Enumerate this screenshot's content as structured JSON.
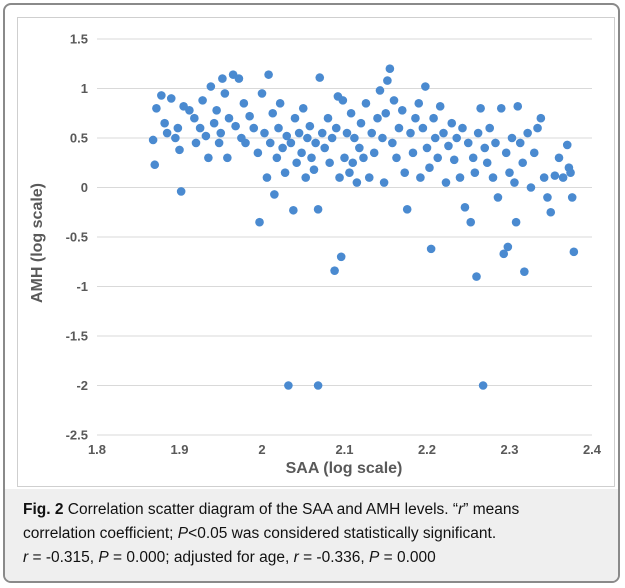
{
  "chart_data": {
    "type": "scatter",
    "xlabel": "SAA (log scale)",
    "ylabel": "AMH (log scale)",
    "xlim": [
      1.8,
      2.4
    ],
    "ylim": [
      -2.5,
      1.5
    ],
    "xticks": [
      "1.8",
      "1.9",
      "2",
      "2.1",
      "2.2",
      "2.3",
      "2.4"
    ],
    "yticks": [
      "1.5",
      "1",
      "0.5",
      "0",
      "-0.5",
      "-1",
      "-1.5",
      "-2",
      "-2.5"
    ],
    "grid": "horizontal",
    "legend": "none",
    "marker_color": "#4a8ad0",
    "points": [
      [
        1.868,
        0.48
      ],
      [
        1.87,
        0.23
      ],
      [
        1.872,
        0.8
      ],
      [
        1.878,
        0.93
      ],
      [
        1.882,
        0.65
      ],
      [
        1.885,
        0.55
      ],
      [
        1.89,
        0.9
      ],
      [
        1.895,
        0.5
      ],
      [
        1.898,
        0.6
      ],
      [
        1.9,
        0.38
      ],
      [
        1.902,
        -0.04
      ],
      [
        1.905,
        0.82
      ],
      [
        1.912,
        0.78
      ],
      [
        1.918,
        0.7
      ],
      [
        1.92,
        0.45
      ],
      [
        1.925,
        0.6
      ],
      [
        1.928,
        0.88
      ],
      [
        1.932,
        0.52
      ],
      [
        1.935,
        0.3
      ],
      [
        1.938,
        1.02
      ],
      [
        1.942,
        0.65
      ],
      [
        1.945,
        0.78
      ],
      [
        1.948,
        0.45
      ],
      [
        1.95,
        0.55
      ],
      [
        1.952,
        1.1
      ],
      [
        1.955,
        0.95
      ],
      [
        1.958,
        0.3
      ],
      [
        1.96,
        0.7
      ],
      [
        1.965,
        1.14
      ],
      [
        1.968,
        0.62
      ],
      [
        1.972,
        1.1
      ],
      [
        1.975,
        0.5
      ],
      [
        1.978,
        0.85
      ],
      [
        1.98,
        0.45
      ],
      [
        1.985,
        0.72
      ],
      [
        1.99,
        0.6
      ],
      [
        1.995,
        0.35
      ],
      [
        1.997,
        -0.35
      ],
      [
        2.0,
        0.95
      ],
      [
        2.003,
        0.55
      ],
      [
        2.006,
        0.1
      ],
      [
        2.008,
        1.14
      ],
      [
        2.01,
        0.45
      ],
      [
        2.013,
        0.75
      ],
      [
        2.015,
        -0.07
      ],
      [
        2.018,
        0.3
      ],
      [
        2.02,
        0.6
      ],
      [
        2.022,
        0.85
      ],
      [
        2.025,
        0.4
      ],
      [
        2.028,
        0.15
      ],
      [
        2.03,
        0.52
      ],
      [
        2.032,
        -2.0
      ],
      [
        2.035,
        0.45
      ],
      [
        2.038,
        -0.23
      ],
      [
        2.04,
        0.7
      ],
      [
        2.042,
        0.25
      ],
      [
        2.045,
        0.55
      ],
      [
        2.048,
        0.35
      ],
      [
        2.05,
        0.8
      ],
      [
        2.053,
        0.1
      ],
      [
        2.055,
        0.5
      ],
      [
        2.058,
        0.62
      ],
      [
        2.06,
        0.3
      ],
      [
        2.063,
        0.18
      ],
      [
        2.065,
        0.45
      ],
      [
        2.068,
        -2.0
      ],
      [
        2.068,
        -0.22
      ],
      [
        2.07,
        1.11
      ],
      [
        2.073,
        0.55
      ],
      [
        2.076,
        0.4
      ],
      [
        2.08,
        0.7
      ],
      [
        2.082,
        0.25
      ],
      [
        2.085,
        0.5
      ],
      [
        2.088,
        -0.84
      ],
      [
        2.09,
        0.6
      ],
      [
        2.092,
        0.92
      ],
      [
        2.094,
        0.1
      ],
      [
        2.096,
        -0.7
      ],
      [
        2.098,
        0.88
      ],
      [
        2.1,
        0.3
      ],
      [
        2.103,
        0.55
      ],
      [
        2.106,
        0.15
      ],
      [
        2.108,
        0.75
      ],
      [
        2.11,
        0.25
      ],
      [
        2.112,
        0.5
      ],
      [
        2.115,
        0.05
      ],
      [
        2.118,
        0.4
      ],
      [
        2.12,
        0.65
      ],
      [
        2.123,
        0.3
      ],
      [
        2.126,
        0.85
      ],
      [
        2.13,
        0.1
      ],
      [
        2.133,
        0.55
      ],
      [
        2.136,
        0.35
      ],
      [
        2.14,
        0.7
      ],
      [
        2.143,
        0.98
      ],
      [
        2.146,
        0.5
      ],
      [
        2.148,
        0.05
      ],
      [
        2.15,
        0.75
      ],
      [
        2.152,
        1.08
      ],
      [
        2.155,
        1.2
      ],
      [
        2.158,
        0.45
      ],
      [
        2.16,
        0.88
      ],
      [
        2.163,
        0.3
      ],
      [
        2.166,
        0.6
      ],
      [
        2.17,
        0.78
      ],
      [
        2.173,
        0.15
      ],
      [
        2.176,
        -0.22
      ],
      [
        2.18,
        0.55
      ],
      [
        2.183,
        0.35
      ],
      [
        2.186,
        0.7
      ],
      [
        2.19,
        0.85
      ],
      [
        2.192,
        0.1
      ],
      [
        2.195,
        0.6
      ],
      [
        2.198,
        1.02
      ],
      [
        2.2,
        0.4
      ],
      [
        2.203,
        0.2
      ],
      [
        2.205,
        -0.62
      ],
      [
        2.208,
        0.7
      ],
      [
        2.21,
        0.5
      ],
      [
        2.213,
        0.3
      ],
      [
        2.216,
        0.82
      ],
      [
        2.22,
        0.55
      ],
      [
        2.223,
        0.05
      ],
      [
        2.226,
        0.42
      ],
      [
        2.23,
        0.65
      ],
      [
        2.233,
        0.28
      ],
      [
        2.236,
        0.5
      ],
      [
        2.24,
        0.1
      ],
      [
        2.243,
        0.6
      ],
      [
        2.246,
        -0.2
      ],
      [
        2.25,
        0.45
      ],
      [
        2.253,
        -0.35
      ],
      [
        2.256,
        0.3
      ],
      [
        2.258,
        0.15
      ],
      [
        2.26,
        -0.9
      ],
      [
        2.262,
        0.55
      ],
      [
        2.265,
        0.8
      ],
      [
        2.268,
        -2.0
      ],
      [
        2.27,
        0.4
      ],
      [
        2.273,
        0.25
      ],
      [
        2.276,
        0.6
      ],
      [
        2.28,
        0.1
      ],
      [
        2.283,
        0.45
      ],
      [
        2.286,
        -0.1
      ],
      [
        2.29,
        0.8
      ],
      [
        2.293,
        -0.67
      ],
      [
        2.296,
        0.35
      ],
      [
        2.298,
        -0.6
      ],
      [
        2.3,
        0.15
      ],
      [
        2.303,
        0.5
      ],
      [
        2.306,
        0.05
      ],
      [
        2.308,
        -0.35
      ],
      [
        2.31,
        0.82
      ],
      [
        2.313,
        0.45
      ],
      [
        2.316,
        0.25
      ],
      [
        2.318,
        -0.85
      ],
      [
        2.322,
        0.55
      ],
      [
        2.326,
        0.0
      ],
      [
        2.33,
        0.35
      ],
      [
        2.334,
        0.6
      ],
      [
        2.338,
        0.7
      ],
      [
        2.342,
        0.1
      ],
      [
        2.346,
        -0.1
      ],
      [
        2.35,
        -0.25
      ],
      [
        2.355,
        0.12
      ],
      [
        2.36,
        0.3
      ],
      [
        2.365,
        0.1
      ],
      [
        2.37,
        0.43
      ],
      [
        2.372,
        0.2
      ],
      [
        2.374,
        0.15
      ],
      [
        2.376,
        -0.1
      ],
      [
        2.378,
        -0.65
      ]
    ]
  },
  "caption": {
    "label": "Fig. 2",
    "line1_a": " Correlation scatter diagram of the SAA and AMH levels. “",
    "line1_r": "r",
    "line1_b": "” means",
    "line2_a": "correlation coefficient; ",
    "line2_p": "P",
    "line2_b": "<0.05 was considered statistically significant.",
    "line3_r1": "r",
    "line3_a": " = -0.315, ",
    "line3_p1": "P",
    "line3_b": " = 0.000; adjusted for age, ",
    "line3_r2": "r",
    "line3_c": " = -0.336, ",
    "line3_p2": "P",
    "line3_d": " = 0.000"
  }
}
